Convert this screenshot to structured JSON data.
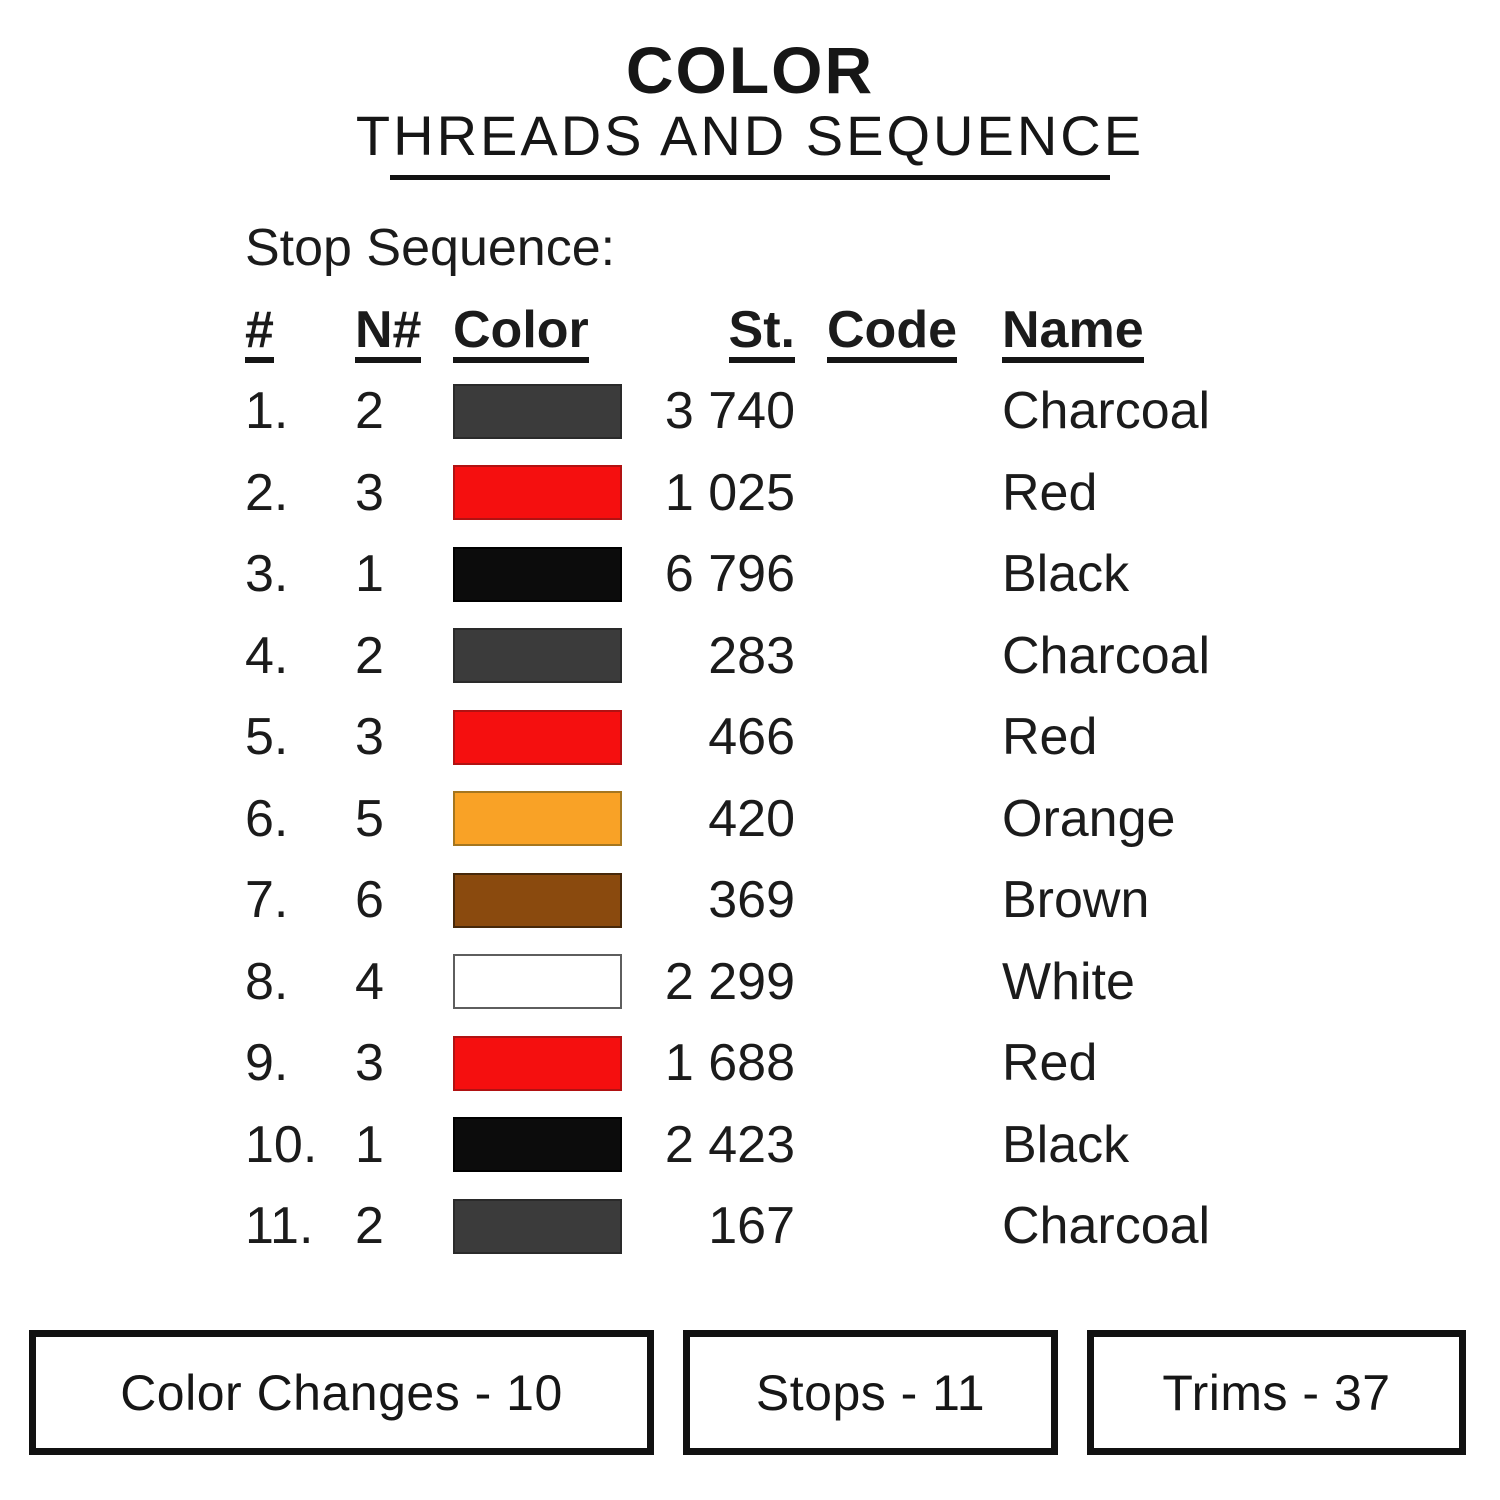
{
  "title": {
    "main": "COLOR",
    "subtitle": "THREADS AND SEQUENCE"
  },
  "stop_sequence_label": "Stop Sequence:",
  "table": {
    "headers": {
      "num": "#",
      "needle": "N#",
      "color": "Color",
      "stitches": "St.",
      "code": "Code",
      "name": "Name"
    },
    "rows": [
      {
        "num": "1.",
        "needle": "2",
        "swatch_color": "#3b3b3b",
        "swatch_border": "#2a2a2a",
        "stitches": "3 740",
        "code": "",
        "name": "Charcoal"
      },
      {
        "num": "2.",
        "needle": "3",
        "swatch_color": "#f50f0f",
        "swatch_border": "#b11212",
        "stitches": "1 025",
        "code": "",
        "name": "Red"
      },
      {
        "num": "3.",
        "needle": "1",
        "swatch_color": "#0c0c0c",
        "swatch_border": "#000000",
        "stitches": "6 796",
        "code": "",
        "name": "Black"
      },
      {
        "num": "4.",
        "needle": "2",
        "swatch_color": "#3b3b3b",
        "swatch_border": "#2a2a2a",
        "stitches": "283",
        "code": "",
        "name": "Charcoal"
      },
      {
        "num": "5.",
        "needle": "3",
        "swatch_color": "#f50f0f",
        "swatch_border": "#b11212",
        "stitches": "466",
        "code": "",
        "name": "Red"
      },
      {
        "num": "6.",
        "needle": "5",
        "swatch_color": "#f9a226",
        "swatch_border": "#a5761f",
        "stitches": "420",
        "code": "",
        "name": "Orange"
      },
      {
        "num": "7.",
        "needle": "6",
        "swatch_color": "#8a4a0e",
        "swatch_border": "#46280a",
        "stitches": "369",
        "code": "",
        "name": "Brown"
      },
      {
        "num": "8.",
        "needle": "4",
        "swatch_color": "#ffffff",
        "swatch_border": "#5e5e5e",
        "stitches": "2 299",
        "code": "",
        "name": "White"
      },
      {
        "num": "9.",
        "needle": "3",
        "swatch_color": "#f50f0f",
        "swatch_border": "#b11212",
        "stitches": "1 688",
        "code": "",
        "name": "Red"
      },
      {
        "num": "10.",
        "needle": "1",
        "swatch_color": "#0c0c0c",
        "swatch_border": "#000000",
        "stitches": "2 423",
        "code": "",
        "name": "Black"
      },
      {
        "num": "11.",
        "needle": "2",
        "swatch_color": "#3b3b3b",
        "swatch_border": "#2a2a2a",
        "stitches": "167",
        "code": "",
        "name": "Charcoal"
      }
    ]
  },
  "footer": {
    "color_changes": "Color Changes - 10",
    "stops": "Stops - 11",
    "trims": "Trims - 37"
  }
}
